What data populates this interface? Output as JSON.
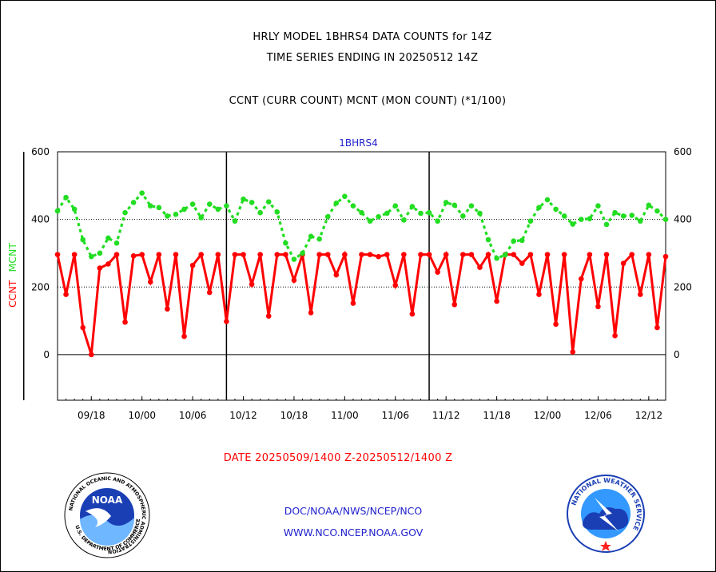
{
  "titles": {
    "line1": "HRLY MODEL 1BHRS4 DATA COUNTS for 14Z",
    "line2": "TIME SERIES ENDING IN 20250512 14Z",
    "line3": "CCNT (CURR COUNT) MCNT (MON COUNT) (*1/100)"
  },
  "date_range": "DATE 20250509/1400 Z-20250512/1400 Z",
  "footer": {
    "org": "DOC/NOAA/NWS/NCEP/NCO",
    "site": "WWW.NCO.NCEP.NOAA.GOV",
    "noaa_logo_text": "NOAA",
    "noaa_ring_text": "NATIONAL OCEANIC AND ATMOSPHERIC ADMINISTRATION",
    "noaa_ring_text_bottom": "U.S. DEPARTMENT OF COMMERCE",
    "nws_ring_text": "NATIONAL WEATHER SERVICE"
  },
  "colors": {
    "ccnt": "#ff0000",
    "mcnt": "#22dd22",
    "series_label": "#2222cc",
    "date": "#ff0000",
    "footer": "#2222cc"
  },
  "chart_data": {
    "type": "line",
    "plot_label": "1BHRS4",
    "ylabel_ccnt": "CCNT",
    "ylabel_mcnt": "MCNT",
    "ylim": [
      -135,
      600
    ],
    "yticks": [
      0,
      200,
      400,
      600
    ],
    "xticks": [
      "09/18",
      "10/00",
      "10/06",
      "10/12",
      "10/18",
      "11/00",
      "11/06",
      "11/12",
      "11/18",
      "12/00",
      "12/06",
      "12/12"
    ],
    "x_start_hour": 14,
    "hours": 73,
    "day_boundaries_hours": [
      24,
      48,
      72
    ],
    "grid": "dotted horizontal at 200 and 400; solid at 0",
    "series": [
      {
        "name": "CCNT",
        "style": "solid",
        "values": [
          296,
          178,
          296,
          80,
          0,
          256,
          268,
          296,
          96,
          292,
          296,
          215,
          296,
          135,
          296,
          54,
          264,
          296,
          184,
          296,
          98,
          296,
          296,
          208,
          296,
          114,
          296,
          296,
          220,
          296,
          124,
          296,
          296,
          236,
          296,
          152,
          296,
          296,
          290,
          296,
          205,
          296,
          120,
          296,
          296,
          244,
          296,
          148,
          296,
          296,
          258,
          296,
          158,
          296,
          296,
          270,
          296,
          178,
          296,
          90,
          296,
          8,
          224,
          296,
          142,
          296,
          56,
          270,
          296,
          178,
          296,
          80,
          290
        ]
      },
      {
        "name": "MCNT",
        "style": "dotted",
        "values": [
          425,
          465,
          430,
          340,
          290,
          300,
          345,
          330,
          420,
          450,
          478,
          440,
          435,
          410,
          415,
          430,
          445,
          405,
          445,
          430,
          440,
          395,
          460,
          450,
          420,
          452,
          422,
          330,
          282,
          300,
          350,
          342,
          408,
          448,
          468,
          440,
          420,
          395,
          408,
          418,
          440,
          398,
          438,
          418,
          420,
          395,
          450,
          442,
          410,
          440,
          418,
          340,
          285,
          295,
          336,
          338,
          395,
          435,
          458,
          430,
          410,
          386,
          400,
          402,
          440,
          385,
          420,
          410,
          412,
          395,
          442,
          425,
          400
        ]
      }
    ]
  }
}
